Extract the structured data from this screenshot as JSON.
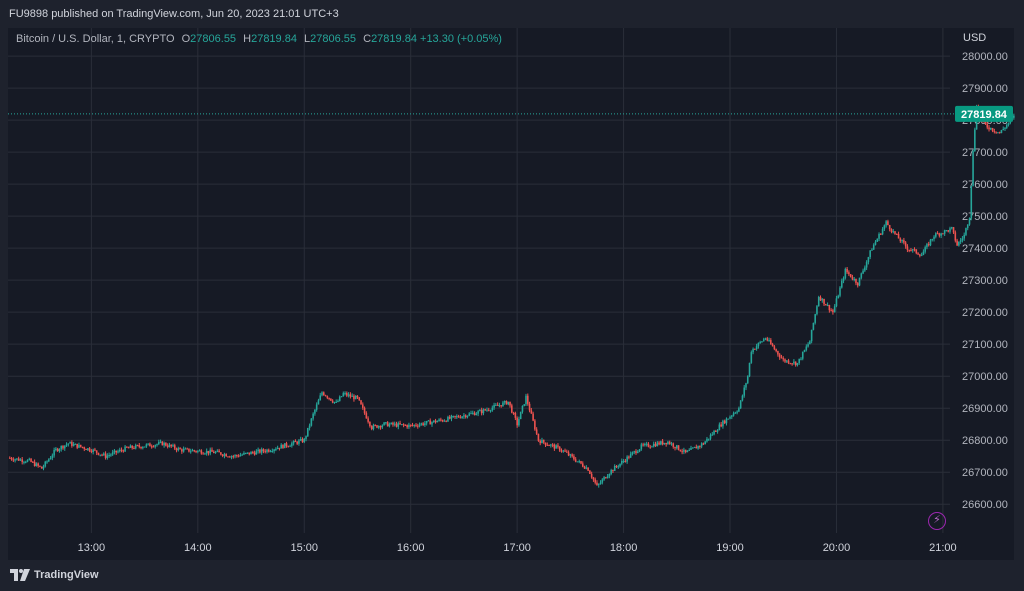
{
  "header": {
    "published": "FU9898 published on TradingView.com, Jun 20, 2023 21:01 UTC+3"
  },
  "legend": {
    "symbol": "Bitcoin / U.S. Dollar, 1, CRYPTO",
    "o_label": "O",
    "o_value": "27806.55",
    "h_label": "H",
    "h_value": "27819.84",
    "l_label": "L",
    "l_value": "27806.55",
    "c_label": "C",
    "c_value": "27819.84",
    "change": "+13.30 (+0.05%)"
  },
  "footer": {
    "brand": "TradingView"
  },
  "icons": {
    "logo": "tradingview-logo-icon",
    "bolt": "lightning-icon"
  },
  "colors": {
    "up": "#26a69a",
    "down": "#ef5350",
    "grid": "#2a2e39",
    "panel": "#161a25",
    "frame": "#1e222d",
    "price_tag": "#089981"
  },
  "chart_data": {
    "type": "candlestick",
    "currency_label": "USD",
    "last_price_label": "27819.84",
    "last_price": 27819.84,
    "ylim": [
      26510,
      28088
    ],
    "y_ticks": [
      26600,
      26700,
      26800,
      26900,
      27000,
      27100,
      27200,
      27300,
      27400,
      27500,
      27600,
      27700,
      27800,
      27900,
      28000
    ],
    "y_tick_labels": [
      "26600.00",
      "26700.00",
      "26800.00",
      "26900.00",
      "27000.00",
      "27100.00",
      "27200.00",
      "27300.00",
      "27400.00",
      "27500.00",
      "27600.00",
      "27700.00",
      "27800.00",
      "27900.00",
      "28000.00"
    ],
    "x_range_minutes": [
      "12:13",
      "21:04"
    ],
    "x_ticks": [
      "13:00",
      "14:00",
      "15:00",
      "16:00",
      "17:00",
      "18:00",
      "19:00",
      "20:00",
      "21:00"
    ],
    "price_path": [
      [
        "12:13",
        26745
      ],
      [
        "12:25",
        26735
      ],
      [
        "12:32",
        26712
      ],
      [
        "12:40",
        26770
      ],
      [
        "12:47",
        26790
      ],
      [
        "13:00",
        26770
      ],
      [
        "13:08",
        26750
      ],
      [
        "13:20",
        26775
      ],
      [
        "13:40",
        26790
      ],
      [
        "13:50",
        26770
      ],
      [
        "14:10",
        26762
      ],
      [
        "14:20",
        26750
      ],
      [
        "14:40",
        26770
      ],
      [
        "15:00",
        26800
      ],
      [
        "15:05",
        26880
      ],
      [
        "15:10",
        26950
      ],
      [
        "15:18",
        26915
      ],
      [
        "15:22",
        26945
      ],
      [
        "15:30",
        26930
      ],
      [
        "15:38",
        26840
      ],
      [
        "15:45",
        26850
      ],
      [
        "16:00",
        26845
      ],
      [
        "16:20",
        26865
      ],
      [
        "16:40",
        26890
      ],
      [
        "16:55",
        26920
      ],
      [
        "17:00",
        26850
      ],
      [
        "17:05",
        26935
      ],
      [
        "17:12",
        26800
      ],
      [
        "17:25",
        26770
      ],
      [
        "17:40",
        26710
      ],
      [
        "17:45",
        26655
      ],
      [
        "17:52",
        26700
      ],
      [
        "18:10",
        26780
      ],
      [
        "18:25",
        26795
      ],
      [
        "18:35",
        26760
      ],
      [
        "18:45",
        26790
      ],
      [
        "18:55",
        26850
      ],
      [
        "19:05",
        26900
      ],
      [
        "19:10",
        27000
      ],
      [
        "19:12",
        27080
      ],
      [
        "19:20",
        27120
      ],
      [
        "19:30",
        27050
      ],
      [
        "19:38",
        27040
      ],
      [
        "19:45",
        27110
      ],
      [
        "19:50",
        27250
      ],
      [
        "19:58",
        27200
      ],
      [
        "20:05",
        27330
      ],
      [
        "20:12",
        27290
      ],
      [
        "20:20",
        27400
      ],
      [
        "20:28",
        27480
      ],
      [
        "20:32",
        27450
      ],
      [
        "20:40",
        27400
      ],
      [
        "20:48",
        27380
      ],
      [
        "20:55",
        27440
      ],
      [
        "21:05",
        27460
      ],
      [
        "21:08",
        27410
      ],
      [
        "21:12",
        27440
      ],
      [
        "21:15",
        27500
      ],
      [
        "21:17",
        27700
      ],
      [
        "21:19",
        27850
      ],
      [
        "21:21",
        27800
      ],
      [
        "21:25",
        27780
      ],
      [
        "21:32",
        27760
      ],
      [
        "21:40",
        27810
      ]
    ]
  }
}
